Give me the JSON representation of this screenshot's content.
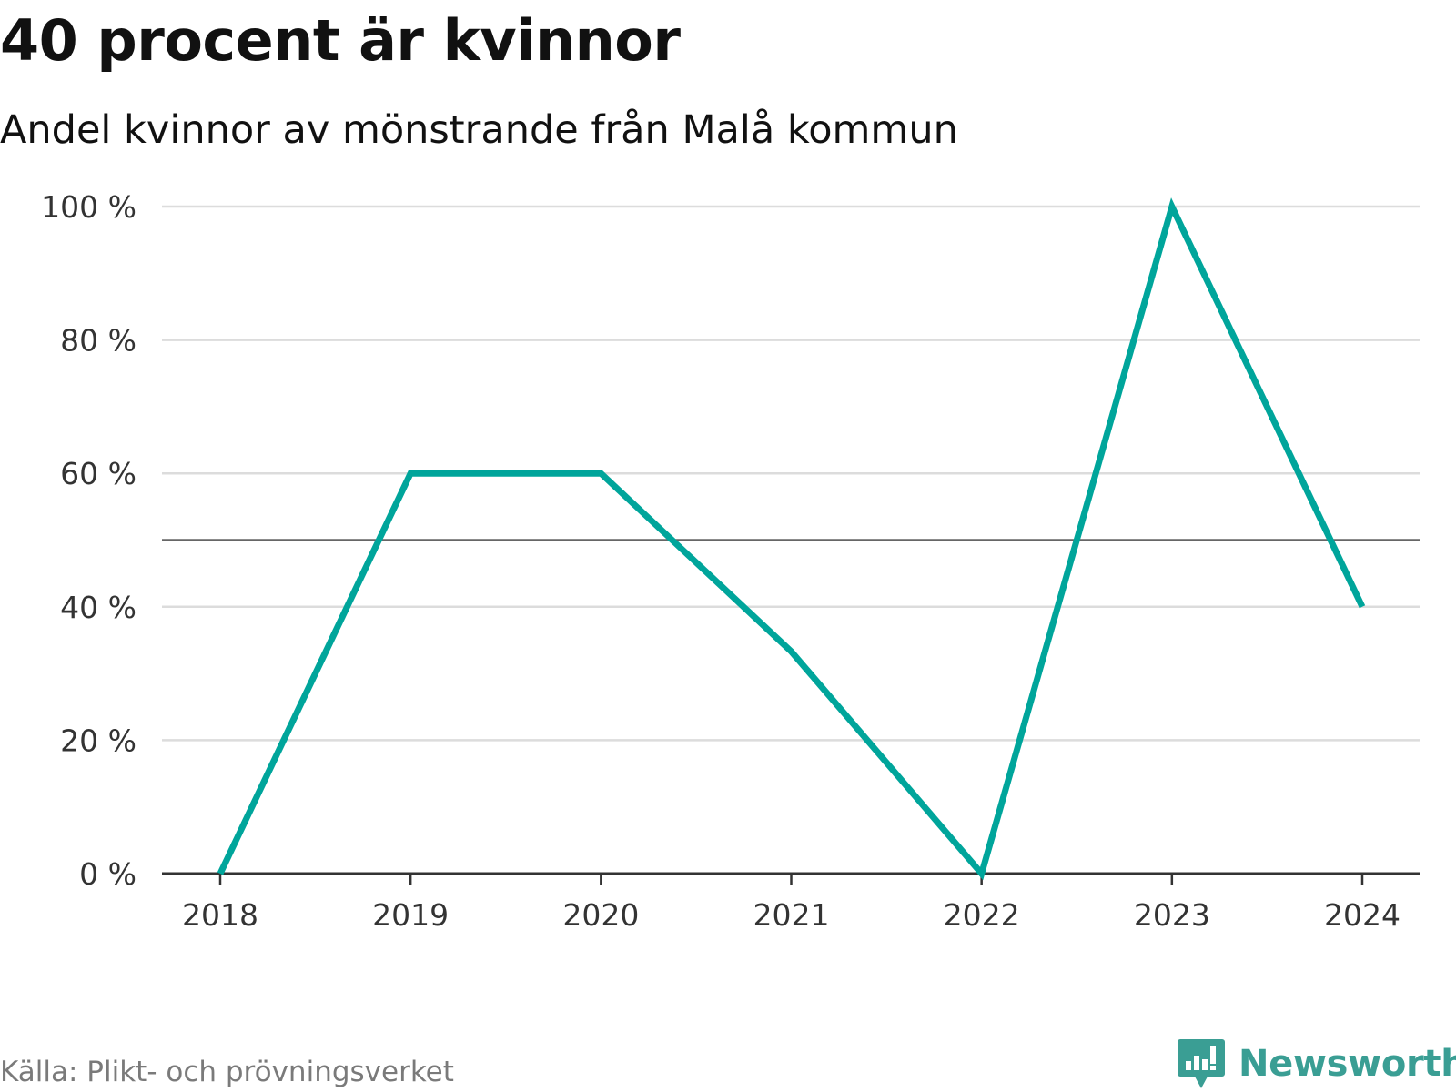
{
  "title": "40 procent är kvinnor",
  "subtitle": "Andel kvinnor av mönstrande från Malå kommun",
  "source": "Källa: Plikt- och prövningsverket",
  "brand": {
    "name": "Newsworthy",
    "icon": "newsworthy-logo-icon",
    "color": "#3a9e94"
  },
  "chart_data": {
    "type": "line",
    "x": [
      "2018",
      "2019",
      "2020",
      "2021",
      "2022",
      "2023",
      "2024"
    ],
    "series": [
      {
        "name": "Andel kvinnor",
        "values": [
          0,
          60,
          60,
          33.3,
          0,
          100,
          40
        ],
        "color": "#00a59b"
      }
    ],
    "ylim": [
      0,
      100
    ],
    "yticks": [
      0,
      20,
      40,
      60,
      80,
      100
    ],
    "ytick_labels": [
      "0 %",
      "20 %",
      "40 %",
      "60 %",
      "80 %",
      "100 %"
    ],
    "reference_line": 50,
    "grid": true,
    "xlabel": "",
    "ylabel": ""
  }
}
